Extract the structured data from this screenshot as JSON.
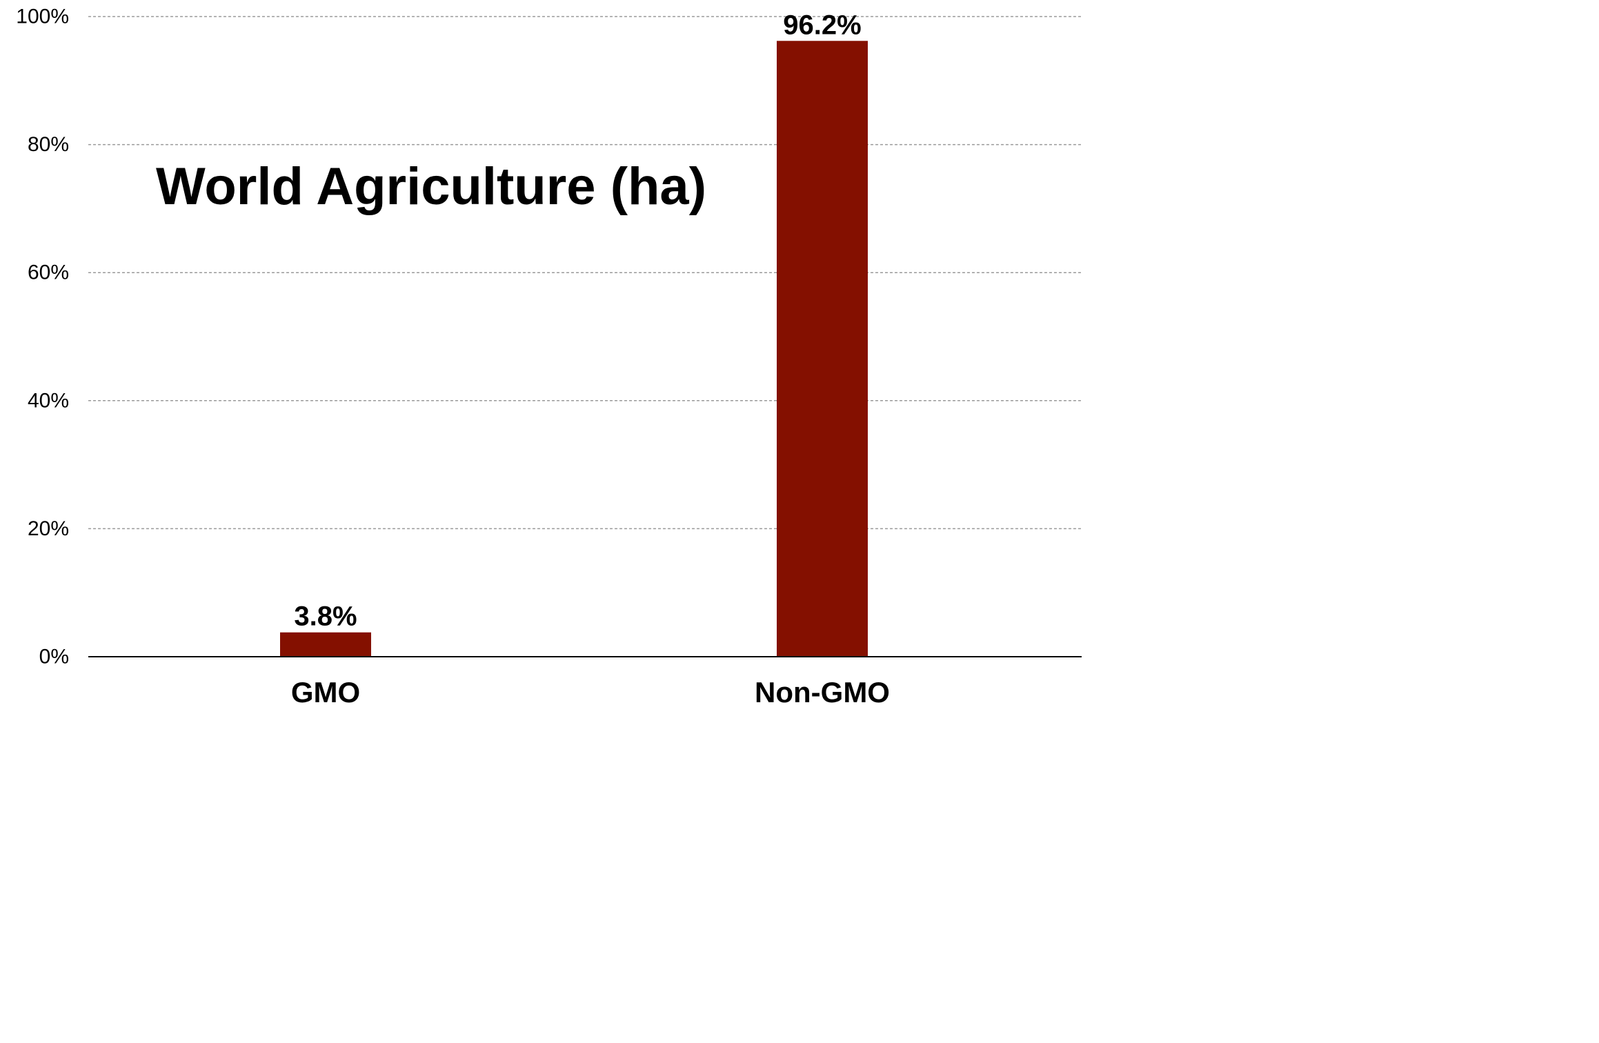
{
  "chart_data": {
    "type": "bar",
    "title": "World Agriculture (ha)",
    "categories": [
      "GMO",
      "Non-GMO"
    ],
    "values": [
      3.8,
      96.2
    ],
    "data_labels": [
      "3.8%",
      "96.2%"
    ],
    "ylim": [
      0,
      100
    ],
    "yticks": [
      0,
      20,
      40,
      60,
      80,
      100
    ],
    "ytick_labels": [
      "0%",
      "20%",
      "40%",
      "60%",
      "80%",
      "100%"
    ],
    "grid": true,
    "bar_color": "#841000",
    "xlabel": "",
    "ylabel": ""
  }
}
